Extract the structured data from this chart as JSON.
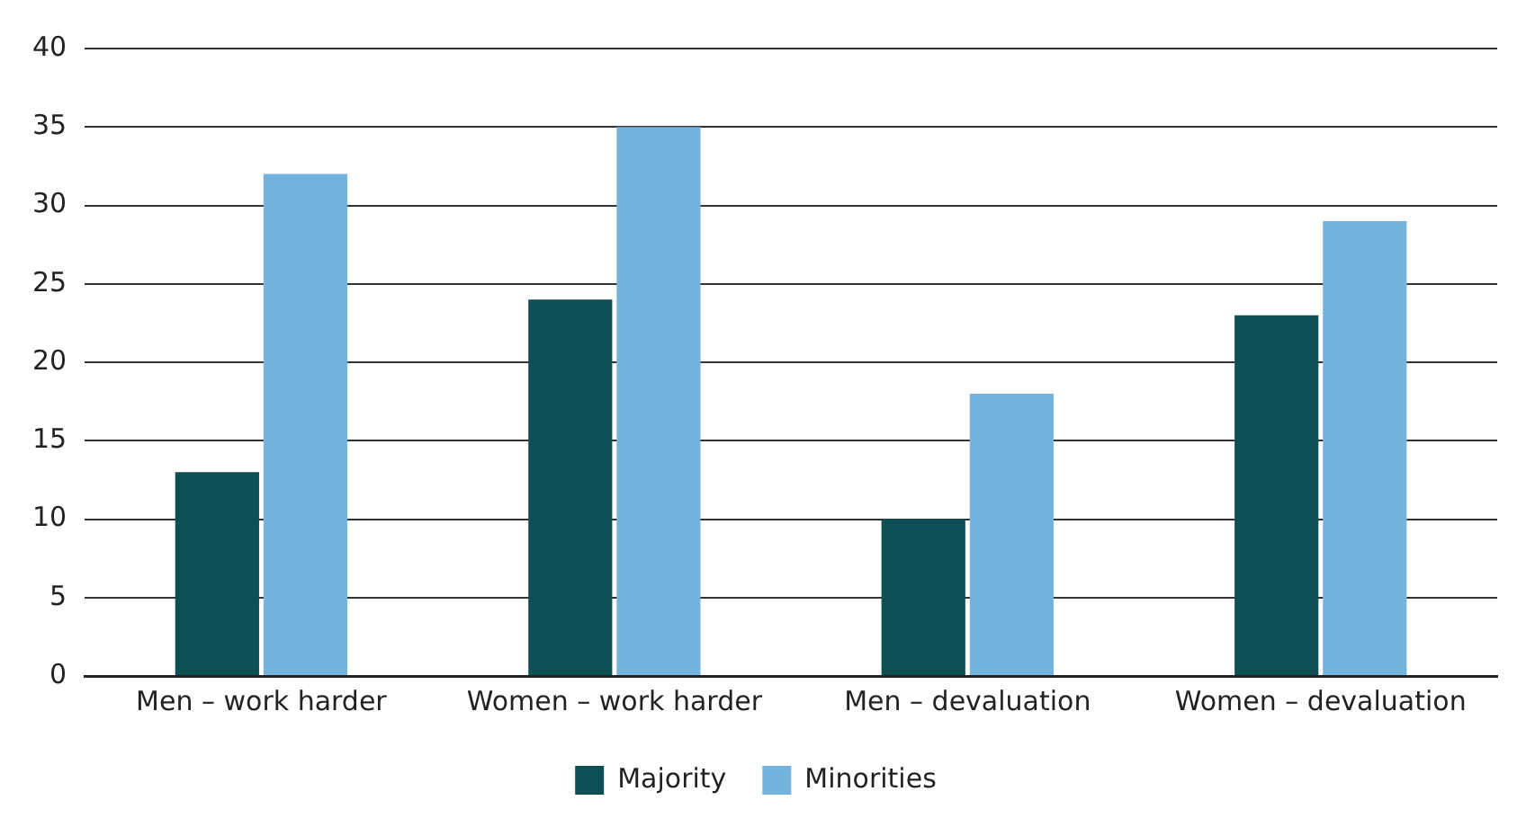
{
  "chart_data": {
    "type": "bar",
    "categories": [
      "Men – work harder",
      "Women – work harder",
      "Men – devaluation",
      "Women – devaluation"
    ],
    "series": [
      {
        "name": "Majority",
        "color": "#0d4f55",
        "values": [
          13,
          24,
          10,
          23
        ]
      },
      {
        "name": "Minorities",
        "color": "#74b3de",
        "values": [
          32,
          35,
          18,
          29
        ]
      }
    ],
    "ylim": [
      0,
      40
    ],
    "yticks": [
      0,
      5,
      10,
      15,
      20,
      25,
      30,
      35,
      40
    ],
    "grid": "y",
    "legend": "bottom"
  }
}
